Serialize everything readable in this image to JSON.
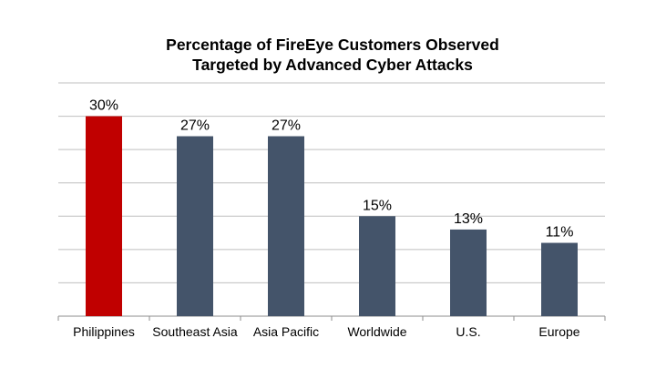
{
  "chart_data": {
    "type": "bar",
    "title_line1": "Percentage of FireEye Customers Observed",
    "title_line2": "Targeted by Advanced Cyber Attacks",
    "categories": [
      "Philippines",
      "Southeast Asia",
      "Asia Pacific",
      "Worldwide",
      "U.S.",
      "Europe"
    ],
    "values": [
      30,
      27,
      27,
      15,
      13,
      11
    ],
    "value_labels": [
      "30%",
      "27%",
      "27%",
      "15%",
      "13%",
      "11%"
    ],
    "ylim": [
      0,
      30
    ],
    "grid": true,
    "legend": "none",
    "colors": [
      "#c00000",
      "#44546a",
      "#44546a",
      "#44546a",
      "#44546a",
      "#44546a"
    ]
  }
}
